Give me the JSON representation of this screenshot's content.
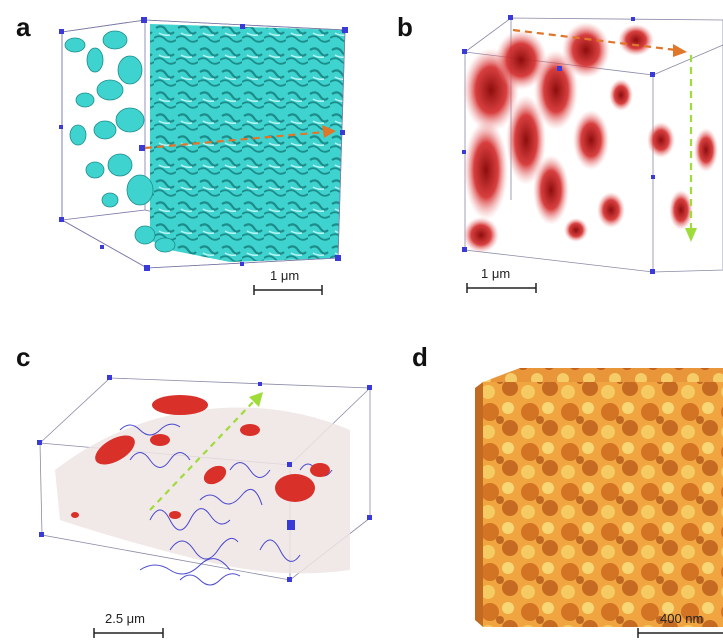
{
  "panels": [
    {
      "label": "a",
      "scale_text": "1 μm",
      "surface_color": "#3fd3d0",
      "arrows": [
        "#e0762a"
      ]
    },
    {
      "label": "b",
      "scale_text": "1 μm",
      "surface_color": "#cc2222",
      "arrows": [
        "#e0762a",
        "#9fdc3a"
      ]
    },
    {
      "label": "c",
      "scale_text": "2.5 μm",
      "surface_colors": [
        "#e9dcdc",
        "#2b2bc9",
        "#d9302a"
      ],
      "arrows": [
        "#9fdc3a"
      ]
    },
    {
      "label": "d",
      "scale_text": "400 nm",
      "surface_colors": [
        "#f6e27a",
        "#e88a22",
        "#8a2a06"
      ]
    }
  ],
  "frame_color": "#3a3ad6"
}
